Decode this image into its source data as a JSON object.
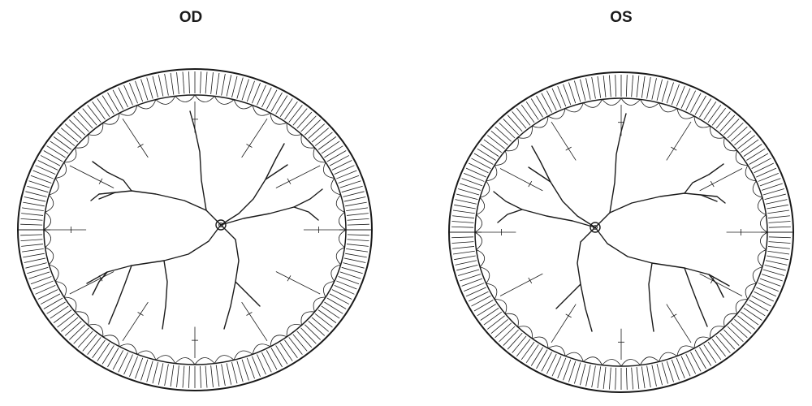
{
  "eyes": [
    {
      "id": "od",
      "label": "OD",
      "mirror": false
    },
    {
      "id": "os",
      "label": "OS",
      "mirror": true
    }
  ],
  "colors": {
    "ink": "#1a1a1a",
    "background": "#ffffff"
  }
}
